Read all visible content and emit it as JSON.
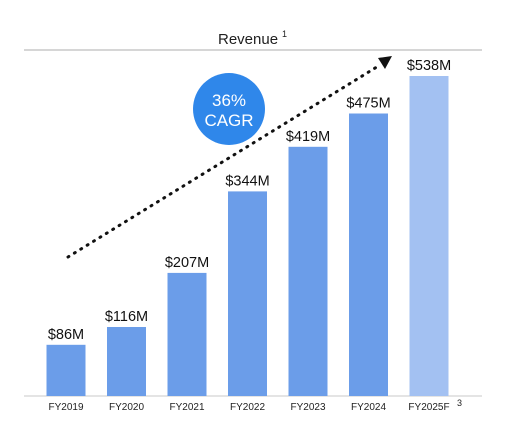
{
  "chart_data": {
    "type": "bar",
    "title": "Revenue",
    "title_superscript": "1",
    "categories": [
      "FY2019",
      "FY2020",
      "FY2021",
      "FY2022",
      "FY2023",
      "FY2024",
      "FY2025F"
    ],
    "last_category_superscript": "3",
    "values": [
      86,
      116,
      207,
      344,
      419,
      475,
      538
    ],
    "data_labels": [
      "$86M",
      "$116M",
      "$207M",
      "$344M",
      "$419M",
      "$475M",
      "$538M"
    ],
    "forecast_index": 6,
    "ylim": [
      0,
      538
    ],
    "xlabel": "",
    "ylabel": "",
    "grid": false,
    "annotation": {
      "line1": "36%",
      "line2": "CAGR"
    },
    "colors": {
      "bar": "#6b9de9",
      "forecast_bar": "#a3c1f2",
      "badge": "#2f87ea",
      "rule": "#c9c9c9",
      "text": "#1f1f1f"
    }
  }
}
